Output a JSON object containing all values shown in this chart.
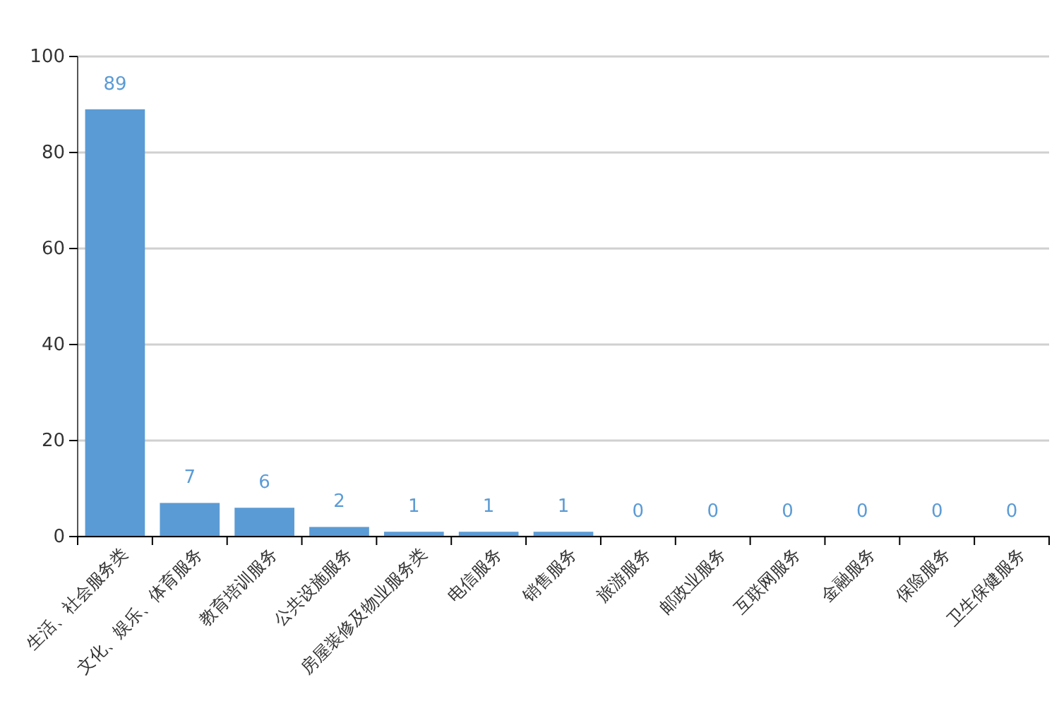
{
  "chart_data": {
    "type": "bar",
    "categories": [
      "生活、社会服务类",
      "文化、娱乐、体育服务",
      "教育培训服务",
      "公共设施服务",
      "房屋装修及物业服务类",
      "电信服务",
      "销售服务",
      "旅游服务",
      "邮政业服务",
      "互联网服务",
      "金融服务",
      "保险服务",
      "卫生保健服务"
    ],
    "values": [
      89,
      7,
      6,
      2,
      1,
      1,
      1,
      0,
      0,
      0,
      0,
      0,
      0
    ],
    "color": "#5b9bd5",
    "ylim": [
      0,
      100
    ],
    "yticks": [
      0,
      20,
      40,
      60,
      80,
      100
    ],
    "grid": "y",
    "data_labels": true
  }
}
